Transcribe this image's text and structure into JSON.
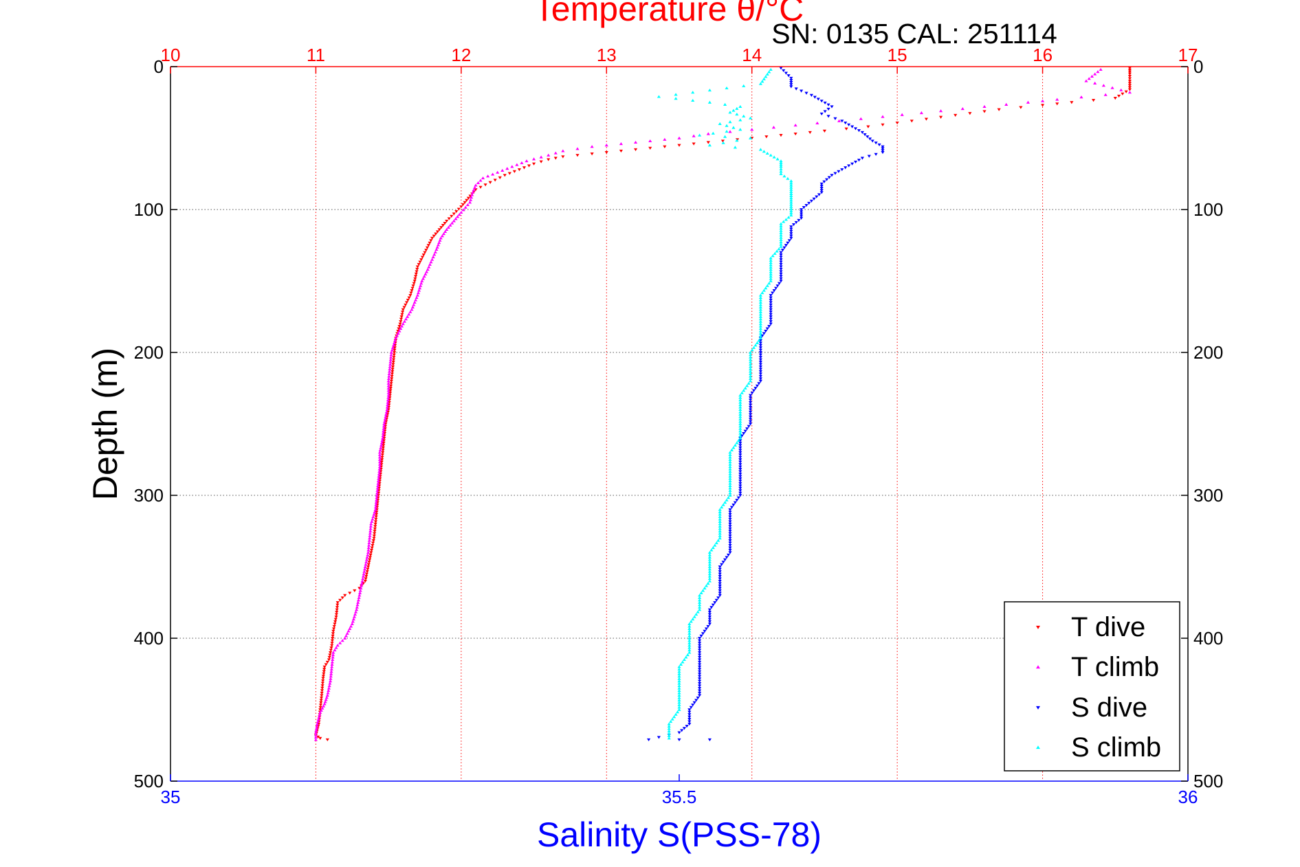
{
  "chart_data": {
    "type": "scatter",
    "title": "Temperature θ/°C",
    "annotation": "SN: 0135  CAL: 251114",
    "ylabel": "Depth (m)",
    "xlabel": "Salinity S(PSS-78)",
    "ylim": [
      0,
      500
    ],
    "y_reversed": true,
    "y_ticks": [
      "0",
      "100",
      "200",
      "300",
      "400",
      "500"
    ],
    "x_top": {
      "label": "Temperature θ/°C",
      "lim": [
        10,
        17
      ],
      "ticks": [
        "10",
        "11",
        "12",
        "13",
        "14",
        "15",
        "16",
        "17"
      ],
      "color": "#ff0000"
    },
    "x_bottom": {
      "label": "Salinity S(PSS-78)",
      "lim": [
        35,
        36
      ],
      "ticks": [
        "35",
        "35.5",
        "36"
      ],
      "color": "#0000ff"
    },
    "grid": true,
    "legend_position": "bottom-right",
    "series": [
      {
        "name": "T dive",
        "axis": "temperature",
        "marker": "triangle-down",
        "color": "#ff0000",
        "points": [
          [
            16.6,
            1
          ],
          [
            16.6,
            5
          ],
          [
            16.6,
            10
          ],
          [
            16.6,
            16
          ],
          [
            16.5,
            22
          ],
          [
            16.2,
            25
          ],
          [
            16.0,
            27
          ],
          [
            15.7,
            30
          ],
          [
            15.4,
            34
          ],
          [
            15.1,
            38
          ],
          [
            14.8,
            42
          ],
          [
            14.5,
            45
          ],
          [
            14.3,
            47
          ],
          [
            14.1,
            49
          ],
          [
            13.9,
            51
          ],
          [
            13.7,
            53
          ],
          [
            13.5,
            55
          ],
          [
            13.3,
            57
          ],
          [
            13.1,
            59
          ],
          [
            12.9,
            61
          ],
          [
            12.7,
            63
          ],
          [
            12.6,
            65
          ],
          [
            12.5,
            68
          ],
          [
            12.4,
            72
          ],
          [
            12.3,
            76
          ],
          [
            12.2,
            81
          ],
          [
            12.1,
            86
          ],
          [
            12.05,
            92
          ],
          [
            12.0,
            98
          ],
          [
            11.95,
            103
          ],
          [
            11.9,
            108
          ],
          [
            11.85,
            114
          ],
          [
            11.8,
            120
          ],
          [
            11.75,
            130
          ],
          [
            11.7,
            140
          ],
          [
            11.68,
            150
          ],
          [
            11.65,
            160
          ],
          [
            11.6,
            170
          ],
          [
            11.58,
            180
          ],
          [
            11.55,
            190
          ],
          [
            11.54,
            200
          ],
          [
            11.53,
            210
          ],
          [
            11.52,
            220
          ],
          [
            11.51,
            230
          ],
          [
            11.5,
            240
          ],
          [
            11.48,
            250
          ],
          [
            11.47,
            260
          ],
          [
            11.46,
            270
          ],
          [
            11.45,
            280
          ],
          [
            11.44,
            290
          ],
          [
            11.43,
            300
          ],
          [
            11.42,
            310
          ],
          [
            11.41,
            320
          ],
          [
            11.4,
            330
          ],
          [
            11.38,
            340
          ],
          [
            11.36,
            350
          ],
          [
            11.34,
            360
          ],
          [
            11.3,
            365
          ],
          [
            11.2,
            370
          ],
          [
            11.15,
            375
          ],
          [
            11.14,
            385
          ],
          [
            11.12,
            395
          ],
          [
            11.11,
            405
          ],
          [
            11.09,
            415
          ],
          [
            11.06,
            420
          ],
          [
            11.05,
            428
          ],
          [
            11.04,
            440
          ],
          [
            11.03,
            450
          ],
          [
            11.02,
            460
          ],
          [
            11.0,
            468
          ],
          [
            11.03,
            470
          ],
          [
            11.08,
            471
          ]
        ]
      },
      {
        "name": "T climb",
        "axis": "temperature",
        "marker": "triangle-up",
        "color": "#ff00ff",
        "points": [
          [
            16.4,
            2
          ],
          [
            16.3,
            10
          ],
          [
            16.6,
            18
          ],
          [
            16.1,
            23
          ],
          [
            15.9,
            25
          ],
          [
            15.6,
            28
          ],
          [
            15.3,
            31
          ],
          [
            14.9,
            35
          ],
          [
            14.6,
            38
          ],
          [
            14.3,
            41
          ],
          [
            14.0,
            44
          ],
          [
            13.7,
            47
          ],
          [
            13.5,
            50
          ],
          [
            13.3,
            52
          ],
          [
            13.1,
            54
          ],
          [
            12.9,
            56
          ],
          [
            12.7,
            59
          ],
          [
            12.6,
            62
          ],
          [
            12.45,
            66
          ],
          [
            12.35,
            70
          ],
          [
            12.25,
            74
          ],
          [
            12.15,
            78
          ],
          [
            12.1,
            83
          ],
          [
            12.08,
            88
          ],
          [
            12.06,
            95
          ],
          [
            12.0,
            102
          ],
          [
            11.95,
            108
          ],
          [
            11.9,
            114
          ],
          [
            11.86,
            120
          ],
          [
            11.83,
            128
          ],
          [
            11.8,
            135
          ],
          [
            11.77,
            142
          ],
          [
            11.73,
            150
          ],
          [
            11.7,
            160
          ],
          [
            11.66,
            170
          ],
          [
            11.6,
            180
          ],
          [
            11.55,
            190
          ],
          [
            11.52,
            200
          ],
          [
            11.51,
            210
          ],
          [
            11.5,
            220
          ],
          [
            11.5,
            230
          ],
          [
            11.49,
            240
          ],
          [
            11.47,
            250
          ],
          [
            11.46,
            260
          ],
          [
            11.44,
            270
          ],
          [
            11.44,
            280
          ],
          [
            11.43,
            290
          ],
          [
            11.42,
            300
          ],
          [
            11.41,
            310
          ],
          [
            11.38,
            320
          ],
          [
            11.37,
            330
          ],
          [
            11.36,
            340
          ],
          [
            11.34,
            350
          ],
          [
            11.32,
            360
          ],
          [
            11.3,
            370
          ],
          [
            11.28,
            380
          ],
          [
            11.25,
            390
          ],
          [
            11.2,
            400
          ],
          [
            11.15,
            405
          ],
          [
            11.12,
            410
          ],
          [
            11.11,
            420
          ],
          [
            11.1,
            430
          ],
          [
            11.08,
            440
          ],
          [
            11.06,
            446
          ],
          [
            11.03,
            452
          ],
          [
            11.01,
            460
          ],
          [
            11.0,
            466
          ],
          [
            11.0,
            471
          ]
        ]
      },
      {
        "name": "S dive",
        "axis": "salinity",
        "marker": "triangle-down",
        "color": "#0000ff",
        "points": [
          [
            35.6,
            1
          ],
          [
            35.61,
            8
          ],
          [
            35.61,
            14
          ],
          [
            35.62,
            17
          ],
          [
            35.63,
            20
          ],
          [
            35.64,
            24
          ],
          [
            35.65,
            28
          ],
          [
            35.64,
            33
          ],
          [
            35.66,
            38
          ],
          [
            35.67,
            42
          ],
          [
            35.68,
            46
          ],
          [
            35.69,
            52
          ],
          [
            35.7,
            56
          ],
          [
            35.7,
            60
          ],
          [
            35.68,
            64
          ],
          [
            35.67,
            68
          ],
          [
            35.66,
            72
          ],
          [
            35.65,
            76
          ],
          [
            35.64,
            82
          ],
          [
            35.64,
            88
          ],
          [
            35.63,
            94
          ],
          [
            35.62,
            100
          ],
          [
            35.62,
            106
          ],
          [
            35.61,
            112
          ],
          [
            35.61,
            120
          ],
          [
            35.6,
            130
          ],
          [
            35.6,
            140
          ],
          [
            35.6,
            150
          ],
          [
            35.59,
            160
          ],
          [
            35.59,
            170
          ],
          [
            35.59,
            180
          ],
          [
            35.58,
            190
          ],
          [
            35.58,
            200
          ],
          [
            35.58,
            210
          ],
          [
            35.58,
            220
          ],
          [
            35.57,
            230
          ],
          [
            35.57,
            240
          ],
          [
            35.57,
            250
          ],
          [
            35.56,
            260
          ],
          [
            35.56,
            270
          ],
          [
            35.56,
            280
          ],
          [
            35.56,
            290
          ],
          [
            35.56,
            300
          ],
          [
            35.55,
            310
          ],
          [
            35.55,
            320
          ],
          [
            35.55,
            330
          ],
          [
            35.55,
            340
          ],
          [
            35.54,
            350
          ],
          [
            35.54,
            360
          ],
          [
            35.54,
            370
          ],
          [
            35.53,
            380
          ],
          [
            35.53,
            390
          ],
          [
            35.52,
            400
          ],
          [
            35.52,
            410
          ],
          [
            35.52,
            420
          ],
          [
            35.52,
            430
          ],
          [
            35.52,
            440
          ],
          [
            35.51,
            450
          ],
          [
            35.51,
            460
          ],
          [
            35.5,
            466
          ],
          [
            35.47,
            471
          ],
          [
            35.5,
            471
          ],
          [
            35.53,
            471
          ]
        ]
      },
      {
        "name": "S climb",
        "axis": "salinity",
        "marker": "triangle-up",
        "color": "#00ffff",
        "points": [
          [
            35.59,
            2
          ],
          [
            35.58,
            12
          ],
          [
            35.48,
            21
          ],
          [
            35.53,
            25
          ],
          [
            35.56,
            28
          ],
          [
            35.55,
            32
          ],
          [
            35.57,
            36
          ],
          [
            35.54,
            40
          ],
          [
            35.56,
            44
          ],
          [
            35.52,
            48
          ],
          [
            35.57,
            50
          ],
          [
            35.53,
            55
          ],
          [
            35.58,
            58
          ],
          [
            35.59,
            62
          ],
          [
            35.6,
            66
          ],
          [
            35.6,
            70
          ],
          [
            35.6,
            75
          ],
          [
            35.61,
            80
          ],
          [
            35.61,
            86
          ],
          [
            35.61,
            92
          ],
          [
            35.61,
            98
          ],
          [
            35.61,
            104
          ],
          [
            35.6,
            110
          ],
          [
            35.6,
            118
          ],
          [
            35.6,
            126
          ],
          [
            35.59,
            134
          ],
          [
            35.59,
            142
          ],
          [
            35.59,
            150
          ],
          [
            35.58,
            160
          ],
          [
            35.58,
            170
          ],
          [
            35.58,
            180
          ],
          [
            35.58,
            190
          ],
          [
            35.57,
            200
          ],
          [
            35.57,
            210
          ],
          [
            35.57,
            220
          ],
          [
            35.56,
            230
          ],
          [
            35.56,
            240
          ],
          [
            35.56,
            250
          ],
          [
            35.56,
            260
          ],
          [
            35.55,
            270
          ],
          [
            35.55,
            280
          ],
          [
            35.55,
            290
          ],
          [
            35.55,
            300
          ],
          [
            35.54,
            310
          ],
          [
            35.54,
            320
          ],
          [
            35.54,
            330
          ],
          [
            35.53,
            340
          ],
          [
            35.53,
            350
          ],
          [
            35.53,
            360
          ],
          [
            35.52,
            370
          ],
          [
            35.52,
            380
          ],
          [
            35.51,
            390
          ],
          [
            35.51,
            400
          ],
          [
            35.51,
            410
          ],
          [
            35.5,
            420
          ],
          [
            35.5,
            430
          ],
          [
            35.5,
            440
          ],
          [
            35.5,
            450
          ],
          [
            35.49,
            460
          ],
          [
            35.49,
            470
          ]
        ]
      }
    ]
  }
}
